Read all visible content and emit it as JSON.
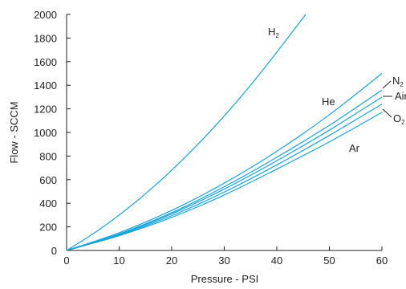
{
  "chart_data": {
    "type": "line",
    "xlabel": "Pressure - PSI",
    "ylabel": "Flow - SCCM",
    "xlim": [
      0,
      60
    ],
    "ylim": [
      0,
      2000
    ],
    "x_ticks": [
      0,
      10,
      20,
      30,
      40,
      50,
      60
    ],
    "y_ticks": [
      0,
      200,
      400,
      600,
      800,
      1000,
      1200,
      1400,
      1600,
      1800,
      2000
    ],
    "grid": false,
    "line_color": "#1aa3d9",
    "series": [
      {
        "name": "H2",
        "label_main": "H",
        "label_sub": "2",
        "x": [
          0,
          5,
          10,
          15,
          20,
          25,
          30,
          35,
          40,
          45.5
        ],
        "y": [
          0,
          140,
          300,
          480,
          680,
          900,
          1140,
          1400,
          1680,
          2000
        ]
      },
      {
        "name": "He",
        "label_main": "He",
        "label_sub": "",
        "x": [
          0,
          10,
          20,
          30,
          40,
          50,
          60
        ],
        "y": [
          0,
          150,
          340,
          570,
          840,
          1150,
          1500
        ]
      },
      {
        "name": "N2",
        "label_main": "N",
        "label_sub": "2",
        "x": [
          0,
          10,
          20,
          30,
          40,
          50,
          60
        ],
        "y": [
          0,
          140,
          320,
          540,
          790,
          1060,
          1360
        ]
      },
      {
        "name": "Air",
        "label_main": "Air",
        "label_sub": "",
        "x": [
          0,
          10,
          20,
          30,
          40,
          50,
          60
        ],
        "y": [
          0,
          135,
          310,
          520,
          760,
          1020,
          1300
        ]
      },
      {
        "name": "O2",
        "label_main": "O",
        "label_sub": "2",
        "x": [
          0,
          10,
          20,
          30,
          40,
          50,
          60
        ],
        "y": [
          0,
          130,
          295,
          495,
          725,
          975,
          1240
        ]
      },
      {
        "name": "Ar",
        "label_main": "Ar",
        "label_sub": "",
        "x": [
          0,
          10,
          20,
          30,
          40,
          50,
          60
        ],
        "y": [
          0,
          125,
          280,
          470,
          690,
          920,
          1170
        ]
      }
    ]
  }
}
